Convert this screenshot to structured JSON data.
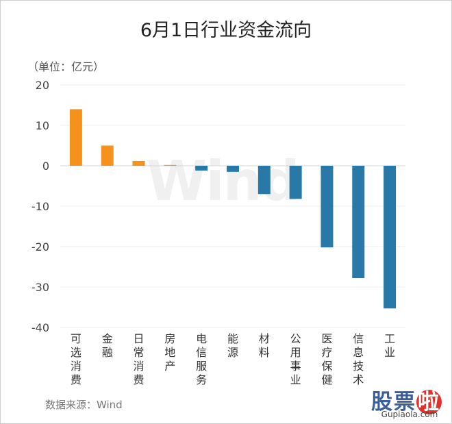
{
  "chart_data": {
    "type": "bar",
    "title": "6月1日行业资金流向",
    "unit_label": "（单位：亿元）",
    "categories": [
      "可选消费",
      "金融",
      "日常消费",
      "房地产",
      "电信服务",
      "能源",
      "材料",
      "公用事业",
      "医疗保健",
      "信息技术",
      "工业"
    ],
    "values": [
      14,
      5,
      1.2,
      0.2,
      -1.2,
      -1.5,
      -7,
      -8.2,
      -20.2,
      -27.8,
      -35.3
    ],
    "ylim": [
      -40,
      20
    ],
    "yticks": [
      20,
      10,
      0,
      -10,
      -20,
      -30,
      -40
    ],
    "grid": true,
    "colors": {
      "positive": "#F5921E",
      "negative": "#2878A8"
    },
    "source": "数据来源：Wind",
    "watermark": "Wind"
  },
  "logo": {
    "cn_left": "股票",
    "cn_highlight": "啦",
    "en": "Gupiaola.com"
  }
}
